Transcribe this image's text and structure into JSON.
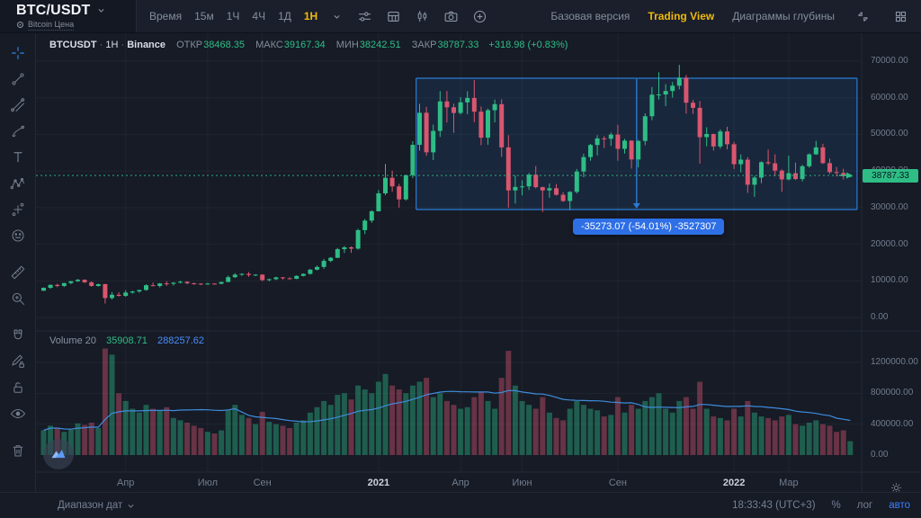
{
  "topbar": {
    "symbol": "BTC/USDT",
    "symbol_sub": "Bitcoin Цена",
    "time_label": "Время",
    "intervals": [
      "15м",
      "1Ч",
      "4Ч",
      "1Д",
      "1Н"
    ],
    "active_interval": "1Н",
    "right_links": [
      "Базовая версия",
      "Trading View",
      "Диаграммы глубины"
    ],
    "active_link": "Trading View"
  },
  "legend": {
    "title": "BTCUSDT",
    "sep": "·",
    "interval": "1H",
    "exchange": "Binance",
    "open_label": "ОТКР",
    "open": "38468.35",
    "high_label": "МАКС",
    "high": "39167.34",
    "low_label": "МИН",
    "low": "38242.51",
    "close_label": "ЗАКР",
    "close": "38787.33",
    "change": "+318.98 (+0.83%)"
  },
  "volume_legend": {
    "label": "Volume 20",
    "value": "35908.71",
    "ma_value": "288257.62"
  },
  "measure_tooltip": "-35273.07 (-54.01%) -3527307",
  "price_axis": {
    "last_price": "38787.33"
  },
  "bottom_bar": {
    "date_range": "Диапазон дат",
    "clock": "18:33:43 (UTC+3)",
    "percent": "%",
    "log": "лог",
    "auto": "авто"
  },
  "colors": {
    "up": "#2ebd85",
    "down": "#d9566f",
    "vol_up": "rgba(46,189,133,0.42)",
    "vol_down": "rgba(217,86,111,0.42)",
    "ma": "#3f8cdb",
    "grid": "rgba(255,255,255,0.045)",
    "measure_stroke": "#2b7bd4",
    "measure_fill": "rgba(43,123,212,0.13)",
    "separator": "#222a38",
    "accent_yellow": "#f0b90b",
    "accent_blue": "#3e7ef7"
  },
  "chart_data": {
    "type": "candlestick",
    "title": "BTCUSDT · 1H · Binance",
    "legend_ohlc": {
      "open": 38468.35,
      "high": 39167.34,
      "low": 38242.51,
      "close": 38787.33,
      "change": 318.98,
      "change_pct": 0.83
    },
    "price_range": [
      0,
      70000
    ],
    "volume_range": [
      0,
      1400000
    ],
    "price_ticks": [
      0,
      10000,
      20000,
      30000,
      40000,
      50000,
      60000,
      70000
    ],
    "volume_ticks": [
      0,
      400000,
      800000,
      1200000
    ],
    "time_ticks": [
      {
        "label": "Апр",
        "week": 12
      },
      {
        "label": "Июл",
        "week": 24
      },
      {
        "label": "Сен",
        "week": 32
      },
      {
        "label": "2021",
        "week": 49,
        "year": true
      },
      {
        "label": "Апр",
        "week": 61
      },
      {
        "label": "Июн",
        "week": 70
      },
      {
        "label": "Сен",
        "week": 84
      },
      {
        "label": "2022",
        "week": 101,
        "year": true
      },
      {
        "label": "Мар",
        "week": 109
      }
    ],
    "last_price": 38787.33,
    "volume_ma_period": 20,
    "measure": {
      "delta": -35273.07,
      "percent": -54.01,
      "amount": -3527307,
      "price_top": 65325,
      "price_bottom": 29475,
      "week_from": 54.5,
      "week_to": 119
    },
    "candles": [
      [
        7300,
        8200,
        7250,
        8100
      ],
      [
        8100,
        9000,
        7800,
        8900
      ],
      [
        8900,
        9200,
        8250,
        8600
      ],
      [
        8600,
        9450,
        8300,
        9400
      ],
      [
        9400,
        9950,
        9100,
        9900
      ],
      [
        9900,
        10500,
        9700,
        10300
      ],
      [
        10300,
        10400,
        9400,
        9600
      ],
      [
        9600,
        9900,
        8400,
        8600
      ],
      [
        8600,
        9200,
        8400,
        9100
      ],
      [
        9100,
        9180,
        3800,
        5300
      ],
      [
        5300,
        6950,
        4900,
        6200
      ],
      [
        6200,
        6900,
        5700,
        5900
      ],
      [
        5900,
        7450,
        5650,
        6800
      ],
      [
        6800,
        7300,
        6500,
        7100
      ],
      [
        7100,
        7550,
        6750,
        7500
      ],
      [
        7500,
        9050,
        7300,
        8800
      ],
      [
        8800,
        9550,
        8500,
        8600
      ],
      [
        8600,
        9400,
        8200,
        9300
      ],
      [
        9300,
        9900,
        8650,
        9200
      ],
      [
        9200,
        9650,
        8700,
        9500
      ],
      [
        9500,
        10000,
        9300,
        9750
      ],
      [
        9750,
        9850,
        9050,
        9350
      ],
      [
        9350,
        9500,
        8900,
        9250
      ],
      [
        9250,
        9350,
        8850,
        9100
      ],
      [
        9100,
        9450,
        8950,
        9250
      ],
      [
        9250,
        9350,
        9000,
        9200
      ],
      [
        9200,
        9750,
        9050,
        9700
      ],
      [
        9700,
        11450,
        9600,
        11000
      ],
      [
        11000,
        12100,
        10800,
        11700
      ],
      [
        11700,
        12050,
        11400,
        11900
      ],
      [
        11900,
        12400,
        11100,
        11600
      ],
      [
        11600,
        11800,
        11300,
        11700
      ],
      [
        11700,
        11750,
        9900,
        10200
      ],
      [
        10200,
        10600,
        9850,
        10450
      ],
      [
        10450,
        11100,
        10200,
        10950
      ],
      [
        10950,
        11050,
        10350,
        10700
      ],
      [
        10700,
        10950,
        10400,
        10550
      ],
      [
        10550,
        11500,
        10450,
        11350
      ],
      [
        11350,
        12050,
        11200,
        11900
      ],
      [
        11900,
        13250,
        11700,
        13050
      ],
      [
        13050,
        14150,
        12900,
        13800
      ],
      [
        13800,
        15980,
        13300,
        15450
      ],
      [
        15450,
        16500,
        15100,
        16300
      ],
      [
        16300,
        18980,
        16200,
        18650
      ],
      [
        18650,
        19500,
        17600,
        19150
      ],
      [
        19150,
        19400,
        17650,
        18800
      ],
      [
        18800,
        24200,
        18500,
        23850
      ],
      [
        23850,
        26900,
        22750,
        26450
      ],
      [
        26450,
        29300,
        25850,
        29000
      ],
      [
        29000,
        34800,
        28950,
        33900
      ],
      [
        33900,
        41950,
        33400,
        38150
      ],
      [
        38150,
        40100,
        34300,
        35800
      ],
      [
        35800,
        36500,
        30000,
        32250
      ],
      [
        32250,
        39000,
        31900,
        38850
      ],
      [
        38850,
        48150,
        38050,
        47150
      ],
      [
        47150,
        58350,
        45550,
        55900
      ],
      [
        55900,
        57500,
        44150,
        45100
      ],
      [
        45100,
        52650,
        43000,
        50950
      ],
      [
        50950,
        61800,
        49300,
        59000
      ],
      [
        59000,
        61850,
        53250,
        57400
      ],
      [
        57400,
        58400,
        50450,
        55850
      ],
      [
        55850,
        60150,
        55450,
        58750
      ],
      [
        58750,
        61800,
        55500,
        59950
      ],
      [
        59950,
        64850,
        53350,
        56200
      ],
      [
        56200,
        57600,
        47050,
        49100
      ],
      [
        49100,
        57050,
        47150,
        56600
      ],
      [
        56600,
        59500,
        53300,
        58250
      ],
      [
        58250,
        59600,
        43850,
        46450
      ],
      [
        46450,
        49800,
        30000,
        34700
      ],
      [
        34700,
        38850,
        31100,
        35650
      ],
      [
        35650,
        37500,
        33350,
        35800
      ],
      [
        35800,
        39450,
        34800,
        39000
      ],
      [
        39000,
        41350,
        35250,
        35600
      ],
      [
        35600,
        35700,
        28800,
        34700
      ],
      [
        34700,
        36600,
        32700,
        35300
      ],
      [
        35300,
        36400,
        33300,
        33500
      ],
      [
        33500,
        34200,
        31550,
        31800
      ],
      [
        31800,
        34500,
        29300,
        34300
      ],
      [
        34300,
        40550,
        33850,
        39850
      ],
      [
        39850,
        44700,
        38300,
        43800
      ],
      [
        43800,
        47400,
        42800,
        47100
      ],
      [
        47100,
        49800,
        44250,
        48900
      ],
      [
        48900,
        49500,
        46250,
        48800
      ],
      [
        48800,
        50500,
        46850,
        49950
      ],
      [
        49950,
        52650,
        42800,
        46050
      ],
      [
        46050,
        48800,
        44750,
        48300
      ],
      [
        48300,
        48350,
        40650,
        43150
      ],
      [
        43150,
        48500,
        41000,
        48200
      ],
      [
        48200,
        55750,
        47050,
        54950
      ],
      [
        54950,
        62950,
        53850,
        60850
      ],
      [
        60850,
        66950,
        59500,
        60900
      ],
      [
        60900,
        63700,
        57700,
        61850
      ],
      [
        61850,
        64300,
        60050,
        63300
      ],
      [
        63300,
        69000,
        62300,
        65500
      ],
      [
        65500,
        66250,
        55650,
        58650
      ],
      [
        58650,
        59450,
        55600,
        57250
      ],
      [
        57250,
        59100,
        42000,
        49250
      ],
      [
        49250,
        51950,
        46750,
        50100
      ],
      [
        50100,
        50200,
        45550,
        46700
      ],
      [
        46700,
        51350,
        46100,
        50800
      ],
      [
        50800,
        52100,
        45900,
        47300
      ],
      [
        47300,
        47950,
        40550,
        41850
      ],
      [
        41850,
        44500,
        39650,
        43100
      ],
      [
        43100,
        43800,
        34000,
        36250
      ],
      [
        36250,
        38700,
        32950,
        38200
      ],
      [
        38200,
        42650,
        36650,
        42400
      ],
      [
        42400,
        45850,
        41650,
        42100
      ],
      [
        42100,
        44550,
        38550,
        40100
      ],
      [
        40100,
        40450,
        34300,
        37700
      ],
      [
        37700,
        44200,
        37450,
        39400
      ],
      [
        39400,
        42300,
        37550,
        37800
      ],
      [
        37800,
        41700,
        37150,
        41300
      ],
      [
        41300,
        44800,
        40900,
        44550
      ],
      [
        44550,
        48200,
        44400,
        46450
      ],
      [
        46450,
        47450,
        41900,
        42150
      ],
      [
        42150,
        43400,
        39200,
        39700
      ],
      [
        39700,
        41100,
        38550,
        39450
      ],
      [
        39450,
        40600,
        37700,
        38600
      ],
      [
        38468.35,
        39167.34,
        38242.51,
        38787.33
      ]
    ],
    "volumes": [
      320000,
      380000,
      350000,
      300000,
      330000,
      410000,
      390000,
      420000,
      350000,
      1380000,
      1300000,
      800000,
      700000,
      600000,
      550000,
      650000,
      600000,
      580000,
      620000,
      480000,
      450000,
      420000,
      380000,
      350000,
      300000,
      280000,
      320000,
      580000,
      650000,
      520000,
      480000,
      400000,
      560000,
      430000,
      400000,
      380000,
      350000,
      420000,
      450000,
      550000,
      620000,
      700000,
      650000,
      780000,
      800000,
      720000,
      900000,
      850000,
      800000,
      950000,
      1050000,
      900000,
      850000,
      800000,
      900000,
      950000,
      1000000,
      750000,
      800000,
      700000,
      650000,
      600000,
      620000,
      750000,
      820000,
      700000,
      600000,
      1000000,
      1350000,
      900000,
      700000,
      650000,
      600000,
      750000,
      550000,
      480000,
      450000,
      600000,
      700000,
      650000,
      600000,
      580000,
      500000,
      520000,
      750000,
      550000,
      650000,
      600000,
      700000,
      750000,
      800000,
      600000,
      550000,
      700000,
      750000,
      600000,
      950000,
      600000,
      500000,
      480000,
      450000,
      600000,
      500000,
      700000,
      550000,
      500000,
      480000,
      450000,
      500000,
      520000,
      400000,
      380000,
      420000,
      450000,
      400000,
      380000,
      300000,
      320000,
      180000
    ]
  }
}
